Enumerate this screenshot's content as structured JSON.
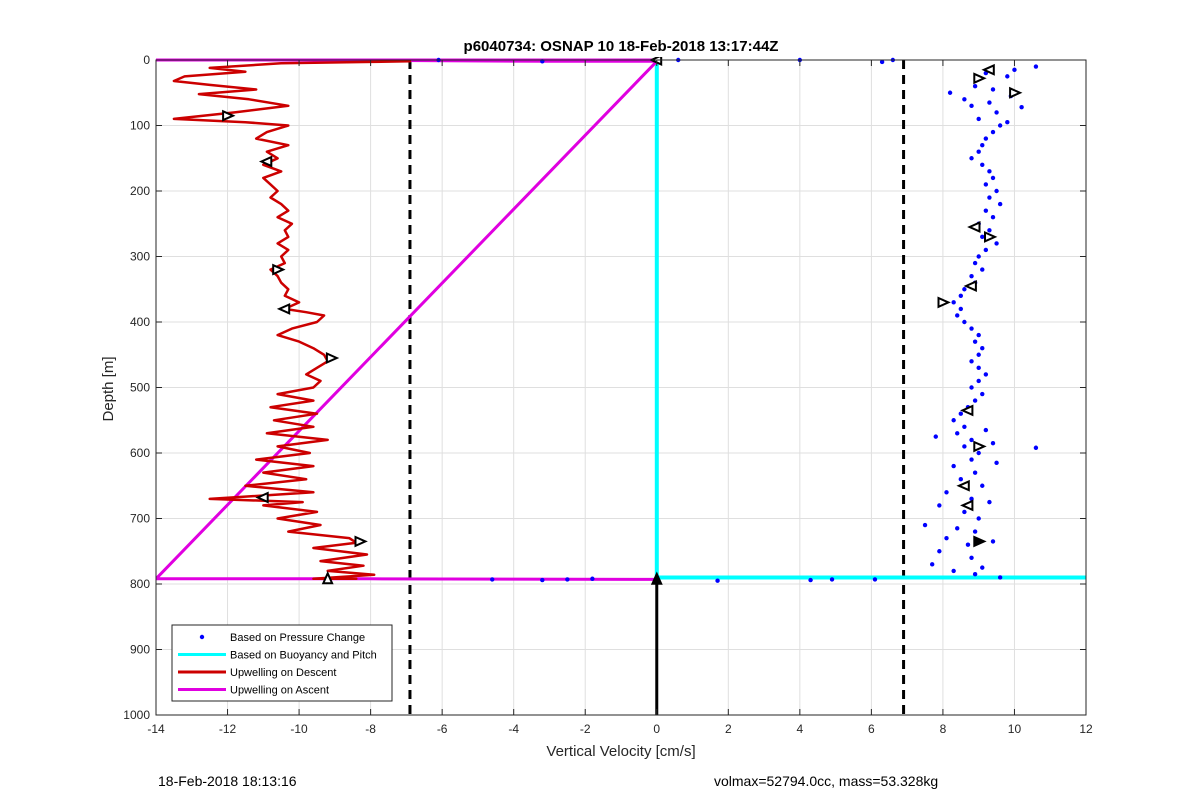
{
  "footer": {
    "left": "18-Feb-2018 18:13:16",
    "right": "volmax=52794.0cc, mass=53.328kg"
  },
  "chart_data": {
    "type": "line",
    "title": "p6040734: OSNAP 10 18-Feb-2018 13:17:44Z",
    "xlabel": "Vertical Velocity [cm/s]",
    "ylabel": "Depth [m]",
    "xlim": [
      -14,
      12
    ],
    "ylim": [
      0,
      1000
    ],
    "y_reversed": true,
    "grid": true,
    "xticks": [
      -14,
      -12,
      -10,
      -8,
      -6,
      -4,
      -2,
      0,
      2,
      4,
      6,
      8,
      10,
      12
    ],
    "yticks": [
      0,
      100,
      200,
      300,
      400,
      500,
      600,
      700,
      800,
      900,
      1000
    ],
    "reference_lines": [
      {
        "orientation": "vertical",
        "x": -6.9,
        "style": "dashed",
        "color": "#000000"
      },
      {
        "orientation": "vertical",
        "x": 6.9,
        "style": "dashed",
        "color": "#000000"
      },
      {
        "orientation": "vertical",
        "x": 0,
        "y_range": [
          793,
          1000
        ],
        "style": "solid",
        "color": "#000000"
      }
    ],
    "legend": {
      "placement": "bottom-left",
      "entries": [
        {
          "label": "Based on Pressure Change",
          "marker": "dot",
          "color": "#0000ff"
        },
        {
          "label": "Based on Buoyancy and Pitch",
          "marker": "line",
          "color": "#00ffff"
        },
        {
          "label": "Upwelling on Descent",
          "marker": "line",
          "color": "#cc0000"
        },
        {
          "label": "Upwelling on Ascent",
          "marker": "line",
          "color": "#e000e0"
        }
      ]
    },
    "series": [
      {
        "key": "buoyancy",
        "color": "#00ffff",
        "style": "line",
        "points": [
          [
            0,
            0
          ],
          [
            0,
            790
          ],
          [
            12,
            790
          ]
        ]
      },
      {
        "key": "ascent",
        "color": "#e000e0",
        "style": "line",
        "points": [
          [
            0,
            0
          ],
          [
            -14,
            0
          ],
          [
            -9.5,
            0
          ],
          [
            -3,
            2
          ],
          [
            0,
            2
          ],
          [
            -14,
            792
          ],
          [
            -8,
            792
          ],
          [
            0,
            793
          ]
        ]
      },
      {
        "key": "descent",
        "color": "#cc0000",
        "style": "line",
        "points": [
          [
            -6.9,
            2
          ],
          [
            -8.2,
            3
          ],
          [
            -10.5,
            5
          ],
          [
            -12.5,
            12
          ],
          [
            -11.5,
            18
          ],
          [
            -13.2,
            25
          ],
          [
            -13.5,
            32
          ],
          [
            -12.5,
            38
          ],
          [
            -11.2,
            45
          ],
          [
            -12.8,
            52
          ],
          [
            -11.4,
            60
          ],
          [
            -10.3,
            70
          ],
          [
            -11.8,
            80
          ],
          [
            -13.5,
            90
          ],
          [
            -11.5,
            95
          ],
          [
            -10.3,
            100
          ],
          [
            -10.9,
            110
          ],
          [
            -11.2,
            120
          ],
          [
            -10.3,
            130
          ],
          [
            -10.9,
            140
          ],
          [
            -10.6,
            150
          ],
          [
            -11.0,
            160
          ],
          [
            -10.5,
            170
          ],
          [
            -11.0,
            180
          ],
          [
            -10.8,
            190
          ],
          [
            -10.6,
            200
          ],
          [
            -10.8,
            210
          ],
          [
            -10.5,
            220
          ],
          [
            -10.3,
            230
          ],
          [
            -10.6,
            240
          ],
          [
            -10.2,
            250
          ],
          [
            -10.4,
            260
          ],
          [
            -10.3,
            270
          ],
          [
            -10.6,
            280
          ],
          [
            -10.3,
            290
          ],
          [
            -10.5,
            300
          ],
          [
            -10.4,
            310
          ],
          [
            -10.8,
            320
          ],
          [
            -10.6,
            330
          ],
          [
            -10.5,
            340
          ],
          [
            -10.3,
            350
          ],
          [
            -10.4,
            360
          ],
          [
            -10.0,
            370
          ],
          [
            -10.4,
            380
          ],
          [
            -9.8,
            385
          ],
          [
            -9.3,
            390
          ],
          [
            -9.5,
            400
          ],
          [
            -10.2,
            410
          ],
          [
            -10.6,
            420
          ],
          [
            -10.0,
            430
          ],
          [
            -9.6,
            440
          ],
          [
            -9.3,
            450
          ],
          [
            -9.2,
            460
          ],
          [
            -9.5,
            470
          ],
          [
            -9.8,
            480
          ],
          [
            -9.4,
            490
          ],
          [
            -9.6,
            500
          ],
          [
            -10.6,
            510
          ],
          [
            -9.6,
            520
          ],
          [
            -10.8,
            530
          ],
          [
            -9.5,
            540
          ],
          [
            -10.7,
            550
          ],
          [
            -9.6,
            560
          ],
          [
            -10.9,
            570
          ],
          [
            -9.2,
            580
          ],
          [
            -10.6,
            590
          ],
          [
            -9.7,
            600
          ],
          [
            -11.2,
            610
          ],
          [
            -9.6,
            620
          ],
          [
            -11.0,
            630
          ],
          [
            -9.8,
            640
          ],
          [
            -11.5,
            650
          ],
          [
            -9.6,
            660
          ],
          [
            -12.5,
            670
          ],
          [
            -9.9,
            675
          ],
          [
            -11.0,
            680
          ],
          [
            -9.5,
            690
          ],
          [
            -10.6,
            700
          ],
          [
            -9.4,
            710
          ],
          [
            -10.3,
            720
          ],
          [
            -8.6,
            730
          ],
          [
            -8.4,
            737
          ],
          [
            -9.6,
            745
          ],
          [
            -8.1,
            755
          ],
          [
            -9.4,
            765
          ],
          [
            -8.2,
            772
          ],
          [
            -9.2,
            780
          ],
          [
            -7.9,
            786
          ],
          [
            -9.6,
            792
          ],
          [
            -8.4,
            792
          ]
        ]
      },
      {
        "key": "pressure",
        "color": "#0000ff",
        "style": "scatter",
        "points": [
          [
            0.6,
            0
          ],
          [
            4.0,
            0
          ],
          [
            6.3,
            3
          ],
          [
            6.6,
            0
          ],
          [
            -6.1,
            0
          ],
          [
            -3.2,
            2
          ],
          [
            9.2,
            20
          ],
          [
            9.8,
            25
          ],
          [
            10.6,
            10
          ],
          [
            10.0,
            15
          ],
          [
            8.9,
            40
          ],
          [
            9.4,
            45
          ],
          [
            8.2,
            50
          ],
          [
            9.9,
            55
          ],
          [
            8.6,
            60
          ],
          [
            9.3,
            65
          ],
          [
            8.8,
            70
          ],
          [
            10.2,
            72
          ],
          [
            9.5,
            80
          ],
          [
            9.0,
            90
          ],
          [
            9.8,
            95
          ],
          [
            9.6,
            100
          ],
          [
            9.4,
            110
          ],
          [
            9.2,
            120
          ],
          [
            9.1,
            130
          ],
          [
            9.0,
            140
          ],
          [
            8.8,
            150
          ],
          [
            9.1,
            160
          ],
          [
            9.3,
            170
          ],
          [
            9.4,
            180
          ],
          [
            9.2,
            190
          ],
          [
            9.5,
            200
          ],
          [
            9.3,
            210
          ],
          [
            9.6,
            220
          ],
          [
            9.2,
            230
          ],
          [
            9.4,
            240
          ],
          [
            9.0,
            250
          ],
          [
            9.3,
            260
          ],
          [
            9.1,
            270
          ],
          [
            9.5,
            280
          ],
          [
            9.2,
            290
          ],
          [
            9.0,
            300
          ],
          [
            8.9,
            310
          ],
          [
            9.1,
            320
          ],
          [
            8.8,
            330
          ],
          [
            8.9,
            340
          ],
          [
            8.6,
            350
          ],
          [
            8.5,
            360
          ],
          [
            8.3,
            370
          ],
          [
            8.5,
            380
          ],
          [
            8.4,
            390
          ],
          [
            8.6,
            400
          ],
          [
            8.8,
            410
          ],
          [
            9.0,
            420
          ],
          [
            8.9,
            430
          ],
          [
            9.1,
            440
          ],
          [
            9.0,
            450
          ],
          [
            8.8,
            460
          ],
          [
            9.0,
            470
          ],
          [
            9.2,
            480
          ],
          [
            9.0,
            490
          ],
          [
            8.8,
            500
          ],
          [
            9.1,
            510
          ],
          [
            8.9,
            520
          ],
          [
            8.7,
            530
          ],
          [
            8.5,
            540
          ],
          [
            8.3,
            550
          ],
          [
            8.6,
            560
          ],
          [
            9.2,
            565
          ],
          [
            8.4,
            570
          ],
          [
            7.8,
            575
          ],
          [
            8.8,
            580
          ],
          [
            9.4,
            585
          ],
          [
            8.6,
            590
          ],
          [
            10.6,
            592
          ],
          [
            9.0,
            600
          ],
          [
            8.8,
            610
          ],
          [
            9.5,
            615
          ],
          [
            8.3,
            620
          ],
          [
            8.9,
            630
          ],
          [
            8.5,
            640
          ],
          [
            9.1,
            650
          ],
          [
            8.1,
            660
          ],
          [
            8.8,
            670
          ],
          [
            9.3,
            675
          ],
          [
            7.9,
            680
          ],
          [
            8.6,
            690
          ],
          [
            9.0,
            700
          ],
          [
            7.5,
            710
          ],
          [
            8.4,
            715
          ],
          [
            8.9,
            720
          ],
          [
            8.1,
            730
          ],
          [
            9.4,
            735
          ],
          [
            8.7,
            740
          ],
          [
            7.9,
            750
          ],
          [
            8.8,
            760
          ],
          [
            7.7,
            770
          ],
          [
            9.1,
            775
          ],
          [
            8.3,
            780
          ],
          [
            8.9,
            785
          ],
          [
            9.6,
            790
          ],
          [
            -4.6,
            793
          ],
          [
            -3.2,
            794
          ],
          [
            -2.5,
            793
          ],
          [
            -1.8,
            792
          ],
          [
            1.7,
            795
          ],
          [
            4.3,
            794
          ],
          [
            4.9,
            793
          ],
          [
            6.1,
            793
          ],
          [
            0.0,
            793
          ]
        ]
      }
    ],
    "markers": [
      {
        "x": 0,
        "y": 0,
        "dir": "left",
        "fill": "#ffffff"
      },
      {
        "x": -12.0,
        "y": 85,
        "dir": "right",
        "fill": "#ffffff"
      },
      {
        "x": -10.9,
        "y": 155,
        "dir": "left",
        "fill": "#ffffff"
      },
      {
        "x": -10.6,
        "y": 320,
        "dir": "right",
        "fill": "#ffffff"
      },
      {
        "x": -10.4,
        "y": 380,
        "dir": "left",
        "fill": "#ffffff"
      },
      {
        "x": -9.1,
        "y": 455,
        "dir": "right",
        "fill": "#ffffff"
      },
      {
        "x": -11.0,
        "y": 668,
        "dir": "left",
        "fill": "#ffffff"
      },
      {
        "x": -8.3,
        "y": 735,
        "dir": "right",
        "fill": "#ffffff"
      },
      {
        "x": -9.2,
        "y": 792,
        "dir": "up",
        "fill": "#ffffff"
      },
      {
        "x": 9.3,
        "y": 15,
        "dir": "left",
        "fill": "#ffffff"
      },
      {
        "x": 9.0,
        "y": 28,
        "dir": "right",
        "fill": "#ffffff"
      },
      {
        "x": 10.0,
        "y": 50,
        "dir": "right",
        "fill": "#ffffff"
      },
      {
        "x": 8.9,
        "y": 255,
        "dir": "left",
        "fill": "#ffffff"
      },
      {
        "x": 9.3,
        "y": 270,
        "dir": "right",
        "fill": "#ffffff"
      },
      {
        "x": 8.8,
        "y": 345,
        "dir": "left",
        "fill": "#ffffff"
      },
      {
        "x": 8.0,
        "y": 370,
        "dir": "right",
        "fill": "#ffffff"
      },
      {
        "x": 8.7,
        "y": 535,
        "dir": "left",
        "fill": "#ffffff"
      },
      {
        "x": 9.0,
        "y": 590,
        "dir": "right",
        "fill": "#ffffff"
      },
      {
        "x": 8.6,
        "y": 650,
        "dir": "left",
        "fill": "#ffffff"
      },
      {
        "x": 8.7,
        "y": 680,
        "dir": "left",
        "fill": "#ffffff"
      },
      {
        "x": 9.0,
        "y": 735,
        "dir": "right",
        "fill": "#000000"
      },
      {
        "x": 0,
        "y": 793,
        "dir": "up",
        "fill": "#000000"
      }
    ]
  }
}
